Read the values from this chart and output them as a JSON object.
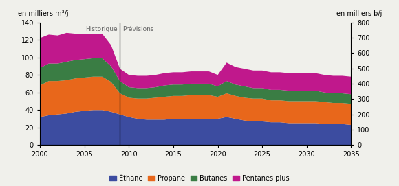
{
  "years": [
    2000,
    2001,
    2002,
    2003,
    2004,
    2005,
    2006,
    2007,
    2008,
    2009,
    2010,
    2011,
    2012,
    2013,
    2014,
    2015,
    2016,
    2017,
    2018,
    2019,
    2020,
    2021,
    2022,
    2023,
    2024,
    2025,
    2026,
    2027,
    2028,
    2029,
    2030,
    2031,
    2032,
    2033,
    2034,
    2035
  ],
  "ethane": [
    32,
    34,
    35,
    36,
    38,
    39,
    40,
    40,
    38,
    35,
    32,
    30,
    29,
    29,
    29,
    30,
    30,
    30,
    30,
    30,
    30,
    32,
    30,
    28,
    27,
    27,
    26,
    26,
    25,
    25,
    25,
    25,
    24,
    24,
    24,
    23
  ],
  "propane": [
    36,
    39,
    38,
    38,
    38,
    38,
    38,
    38,
    34,
    24,
    22,
    23,
    24,
    25,
    26,
    26,
    26,
    27,
    27,
    27,
    25,
    27,
    26,
    26,
    26,
    26,
    25,
    25,
    25,
    25,
    25,
    25,
    25,
    24,
    24,
    24
  ],
  "butanes": [
    20,
    20,
    20,
    21,
    21,
    21,
    21,
    21,
    18,
    14,
    12,
    12,
    12,
    12,
    13,
    13,
    13,
    13,
    13,
    13,
    12,
    14,
    13,
    13,
    12,
    12,
    12,
    12,
    12,
    12,
    12,
    12,
    11,
    11,
    11,
    11
  ],
  "pentanes_plus": [
    34,
    33,
    32,
    33,
    30,
    29,
    28,
    28,
    24,
    14,
    14,
    14,
    14,
    14,
    14,
    14,
    14,
    14,
    14,
    14,
    13,
    21,
    20,
    20,
    20,
    20,
    20,
    20,
    20,
    20,
    20,
    20,
    20,
    20,
    20,
    20
  ],
  "color_ethane": "#3c4ca0",
  "color_propane": "#e8671b",
  "color_butanes": "#3a7d44",
  "color_pentanes": "#c0188c",
  "ylabel_left": "en milliers m³/j",
  "ylabel_right": "en milliers b/j",
  "ylim_left": [
    0,
    140
  ],
  "ylim_right": [
    0,
    800
  ],
  "xmin": 2000,
  "xmax": 2035,
  "divider_year": 2009,
  "label_historique": "Historique",
  "label_previsions": "Prévisions",
  "legend_ethane": "Éthane",
  "legend_propane": "Propane",
  "legend_butanes": "Butanes",
  "legend_pentanes": "Pentanes plus",
  "bg_color": "#f0f0eb",
  "yticks_left": [
    0,
    20,
    40,
    60,
    80,
    100,
    120,
    140
  ],
  "yticks_right": [
    0,
    100,
    200,
    300,
    400,
    500,
    600,
    700,
    800
  ],
  "xticks": [
    2000,
    2005,
    2010,
    2015,
    2020,
    2025,
    2030,
    2035
  ]
}
